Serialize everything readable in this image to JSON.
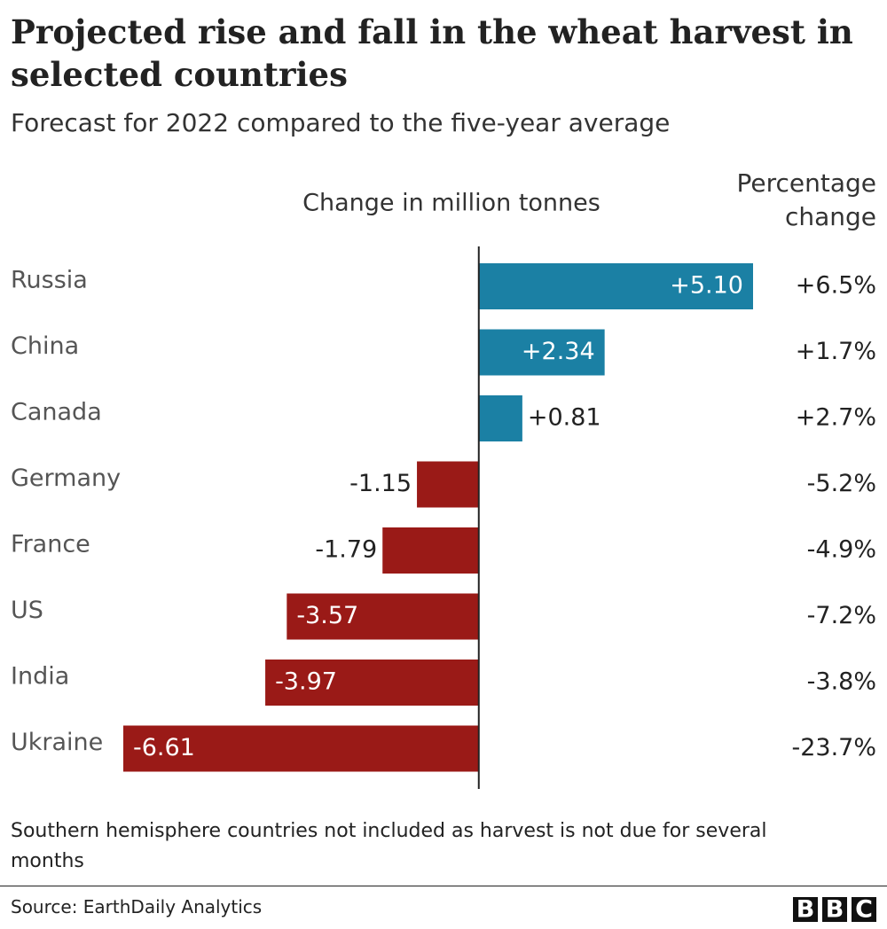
{
  "chart_data": {
    "type": "bar",
    "orientation": "horizontal",
    "title": "Projected rise and fall in the wheat harvest in selected countries",
    "subtitle": "Forecast for 2022 compared to the five-year average",
    "value_axis_title": "Change in million tonnes",
    "categories": [
      "Russia",
      "China",
      "Canada",
      "Germany",
      "France",
      "US",
      "India",
      "Ukraine"
    ],
    "values": [
      5.1,
      2.34,
      0.81,
      -1.15,
      -1.79,
      -3.57,
      -3.97,
      -6.61
    ],
    "value_labels": [
      "+5.10",
      "+2.34",
      "+0.81",
      "-1.15",
      "-1.79",
      "-3.57",
      "-3.97",
      "-6.61"
    ],
    "positive_color": "#1b80a4",
    "negative_color": "#9a1a17",
    "percent_change": {
      "name": "Percentage change",
      "values": [
        6.5,
        1.7,
        2.7,
        -5.2,
        -4.9,
        -7.2,
        -3.8,
        -23.7
      ],
      "value_labels": [
        "+6.5%",
        "+1.7%",
        "+2.7%",
        "-5.2%",
        "-4.9%",
        "-7.2%",
        "-3.8%",
        "-23.7%"
      ]
    },
    "note": "Southern hemisphere countries not included as harvest is not due for several months",
    "source": "Source: EarthDaily Analytics",
    "logo": [
      "B",
      "B",
      "C"
    ]
  }
}
